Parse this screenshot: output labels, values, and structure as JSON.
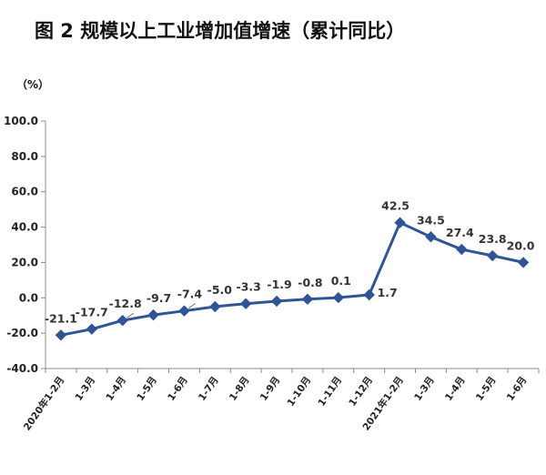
{
  "chart_data": {
    "type": "line",
    "title": "图 2    规模以上工业增加值增速（累计同比）",
    "ylabel": "（%）",
    "xlabel": "",
    "ylim": [
      -40,
      100
    ],
    "yticks": [
      "100.0",
      "80.0",
      "60.0",
      "40.0",
      "20.0",
      "0.0",
      "-20.0",
      "-40.0"
    ],
    "ytick_values": [
      100,
      80,
      60,
      40,
      20,
      0,
      -20,
      -40
    ],
    "grid": false,
    "legend": "none",
    "categories": [
      "2020年1-2月",
      "1-3月",
      "1-4月",
      "1-5月",
      "1-6月",
      "1-7月",
      "1-8月",
      "1-9月",
      "1-10月",
      "1-11月",
      "1-12月",
      "2021年1-2月",
      "1-3月",
      "1-4月",
      "1-5月",
      "1-6月"
    ],
    "series": [
      {
        "name": "规模以上工业增加值增速（累计同比）",
        "values": [
          -21.1,
          -17.7,
          -12.8,
          -9.7,
          -7.4,
          -5.0,
          -3.3,
          -1.9,
          -0.8,
          0.1,
          1.7,
          42.5,
          34.5,
          27.4,
          23.8,
          20.0
        ],
        "labels": [
          "-21.1",
          "-17.7",
          "-12.8",
          "-9.7",
          "-7.4",
          "-5.0",
          "-3.3",
          "-1.9",
          "-0.8",
          "0.1",
          "1.7",
          "42.5",
          "34.5",
          "27.4",
          "23.8",
          "20.0"
        ],
        "color": "#2f5597"
      }
    ]
  }
}
